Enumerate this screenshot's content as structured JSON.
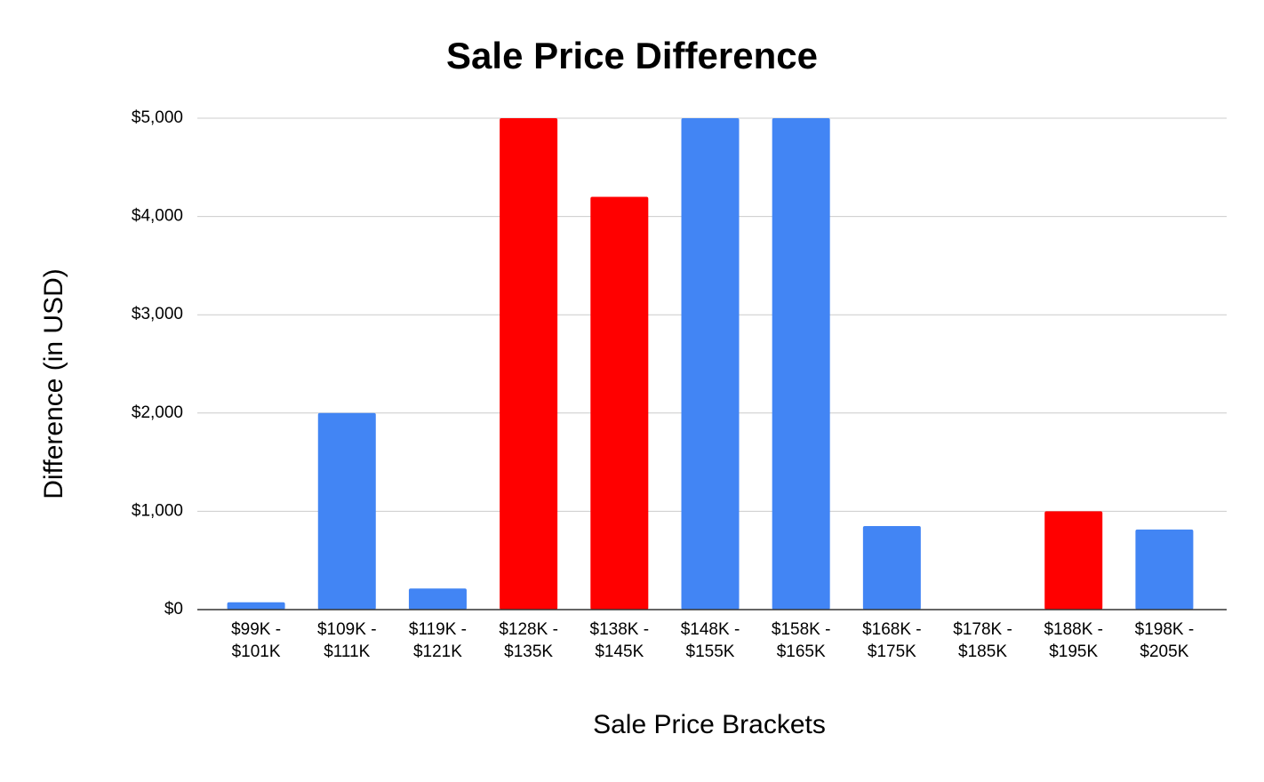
{
  "chart_data": {
    "type": "bar",
    "title": "Sale Price Difference",
    "x_label": "Sale Price Brackets",
    "y_label": "Difference (in USD)",
    "categories": [
      "$99K - $101K",
      "$109K - $111K",
      "$119K - $121K",
      "$128K - $135K",
      "$138K - $145K",
      "$148K - $155K",
      "$158K - $165K",
      "$168K - $175K",
      "$178K - $185K",
      "$188K - $195K",
      "$198K - $205K"
    ],
    "values": [
      75,
      2000,
      215,
      5000,
      4200,
      5000,
      5000,
      850,
      0,
      1000,
      815
    ],
    "colors": [
      "#4285f4",
      "#4285f4",
      "#4285f4",
      "#ff0000",
      "#ff0000",
      "#4285f4",
      "#4285f4",
      "#4285f4",
      "#4285f4",
      "#ff0000",
      "#4285f4"
    ],
    "ylim": [
      0,
      5000
    ],
    "yticks": [
      {
        "value": 0,
        "label": "$0"
      },
      {
        "value": 1000,
        "label": "$1,000"
      },
      {
        "value": 2000,
        "label": "$2,000"
      },
      {
        "value": 3000,
        "label": "$3,000"
      },
      {
        "value": 4000,
        "label": "$4,000"
      },
      {
        "value": 5000,
        "label": "$5,000"
      }
    ],
    "grid": true
  }
}
